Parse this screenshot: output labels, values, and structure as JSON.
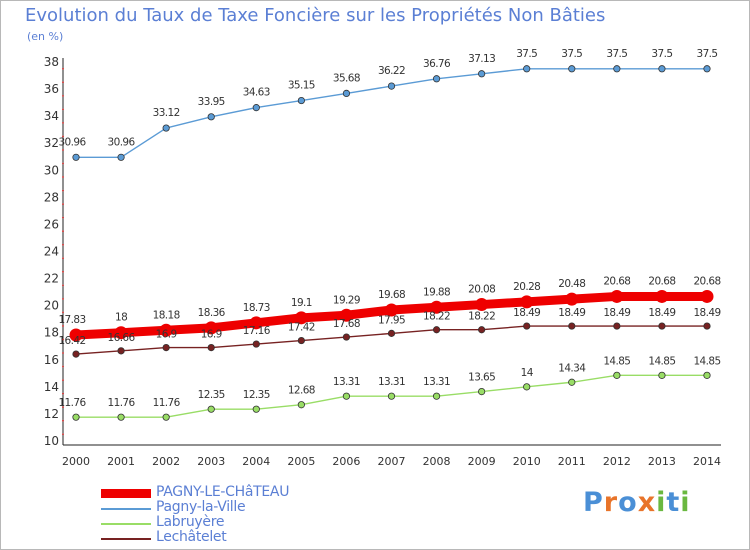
{
  "title": "Evolution du Taux de Taxe Foncière sur les Propriétés Non Bâties",
  "unit_label": "(en %)",
  "logo": {
    "letters": [
      "P",
      "r",
      "o",
      "x",
      "i",
      "t",
      "i"
    ],
    "colors": [
      "#4a8fd6",
      "#e8742a",
      "#4a8fd6",
      "#e8742a",
      "#6ab840",
      "#4a8fd6",
      "#6ab840"
    ]
  },
  "chart_data": {
    "type": "line",
    "title": "Evolution du Taux de Taxe Foncière sur les Propriétés Non Bâties",
    "ylabel": "(en %)",
    "x": [
      "2000",
      "2001",
      "2002",
      "2003",
      "2004",
      "2005",
      "2006",
      "2007",
      "2008",
      "2009",
      "2010",
      "2011",
      "2012",
      "2013",
      "2014"
    ],
    "ylim": [
      10,
      38
    ],
    "yticks": [
      "10",
      "12",
      "14",
      "16",
      "18",
      "20",
      "22",
      "24",
      "26",
      "28",
      "30",
      "32",
      "34",
      "36",
      "38"
    ],
    "grid": false,
    "legend": "bottom-left",
    "series": [
      {
        "name": "PAGNY-LE-CHâTEAU",
        "color": "#ee0000",
        "values": [
          17.83,
          18,
          18.18,
          18.36,
          18.73,
          19.1,
          19.29,
          19.68,
          19.88,
          20.08,
          20.28,
          20.48,
          20.68,
          20.68,
          20.68
        ],
        "labels": [
          "17.83",
          "18",
          "18.18",
          "18.36",
          "18.73",
          "19.1",
          "19.29",
          "19.68",
          "19.88",
          "20.08",
          "20.28",
          "20.48",
          "20.68",
          "20.68",
          "20.68"
        ]
      },
      {
        "name": "Pagny-la-Ville",
        "color": "#5b9bd5",
        "values": [
          30.96,
          30.96,
          33.12,
          33.95,
          34.63,
          35.15,
          35.68,
          36.22,
          36.76,
          37.13,
          37.5,
          37.5,
          37.5,
          37.5,
          37.5
        ],
        "labels": [
          "30.96",
          "30.96",
          "33.12",
          "33.95",
          "34.63",
          "35.15",
          "35.68",
          "36.22",
          "36.76",
          "37.13",
          "37.5",
          "37.5",
          "37.5",
          "37.5",
          "37.5"
        ]
      },
      {
        "name": "Labruyère",
        "color": "#99dd66",
        "values": [
          11.76,
          11.76,
          11.76,
          12.35,
          12.35,
          12.68,
          13.31,
          13.31,
          13.31,
          13.65,
          14,
          14.34,
          14.85,
          14.85,
          14.85
        ],
        "labels": [
          "11.76",
          "11.76",
          "11.76",
          "12.35",
          "12.35",
          "12.68",
          "13.31",
          "13.31",
          "13.31",
          "13.65",
          "14",
          "14.34",
          "14.85",
          "14.85",
          "14.85"
        ]
      },
      {
        "name": "Lechâtelet",
        "color": "#772222",
        "values": [
          16.42,
          16.66,
          16.9,
          16.9,
          17.16,
          17.42,
          17.68,
          17.95,
          18.22,
          18.22,
          18.49,
          18.49,
          18.49,
          18.49,
          18.49
        ],
        "labels": [
          "16.42",
          "16.66",
          "16.9",
          "16.9",
          "17.16",
          "17.42",
          "17.68",
          "17.95",
          "18.22",
          "18.22",
          "18.49",
          "18.49",
          "18.49",
          "18.49",
          "18.49"
        ]
      }
    ]
  }
}
